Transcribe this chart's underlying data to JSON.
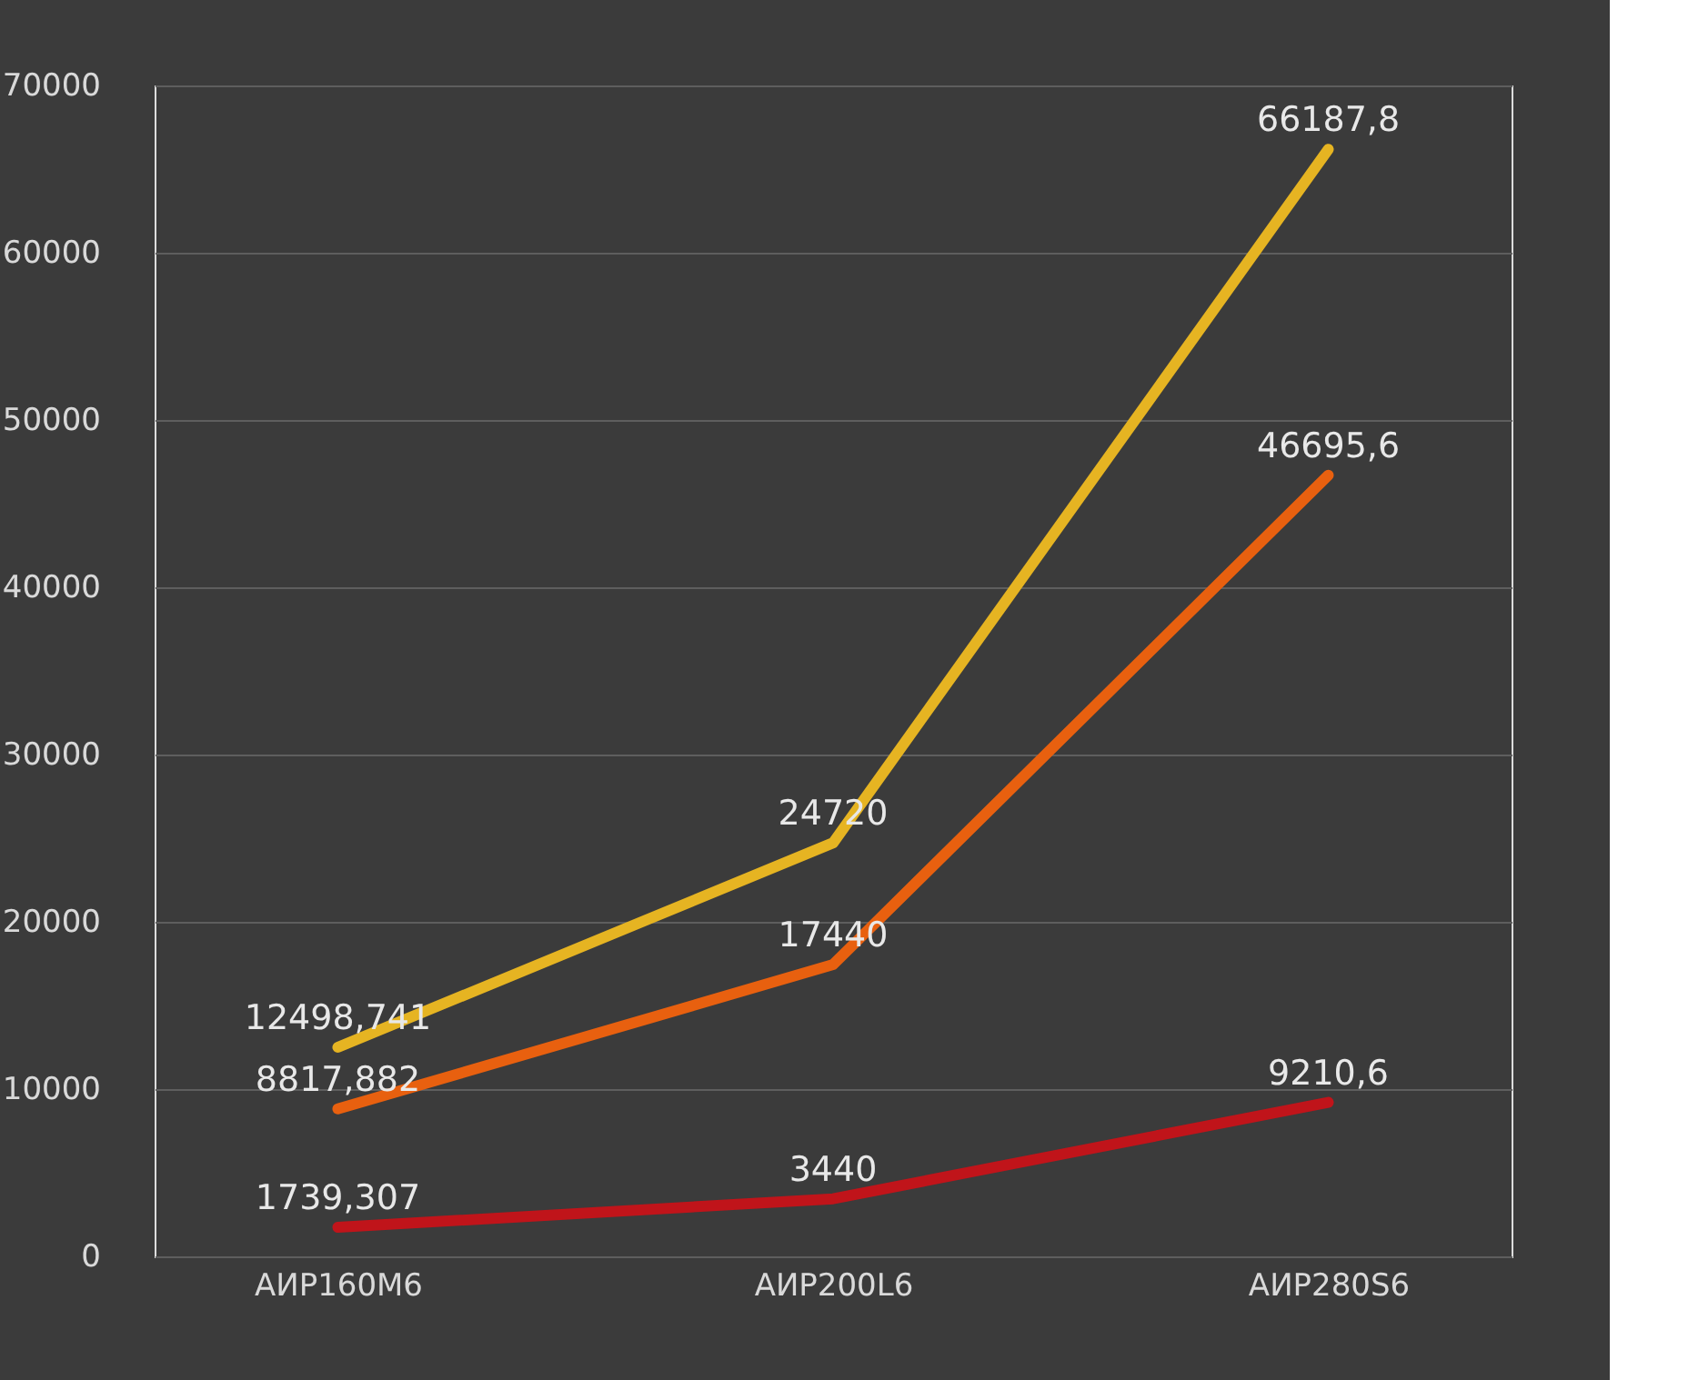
{
  "chart_data": {
    "type": "line",
    "categories": [
      "АИР160М6",
      "АИР200L6",
      "АИР280S6"
    ],
    "series": [
      {
        "color": "#e6b422",
        "values": [
          12498.741,
          24720,
          66187.8
        ],
        "value_labels": [
          "12498,741",
          "24720",
          "66187,8"
        ]
      },
      {
        "color": "#e8600f",
        "values": [
          8817.882,
          17440,
          46695.6
        ],
        "value_labels": [
          "8817,882",
          "17440",
          "46695,6"
        ]
      },
      {
        "color": "#c0141a",
        "values": [
          1739.307,
          3440,
          9210.6
        ],
        "value_labels": [
          "1739,307",
          "3440",
          "9210,6"
        ]
      }
    ],
    "ylim": [
      0,
      70000
    ],
    "yticks": [
      0,
      10000,
      20000,
      30000,
      40000,
      50000,
      60000,
      70000
    ],
    "grid": "y",
    "legend": false,
    "marker": "none",
    "line_style": "solid"
  }
}
